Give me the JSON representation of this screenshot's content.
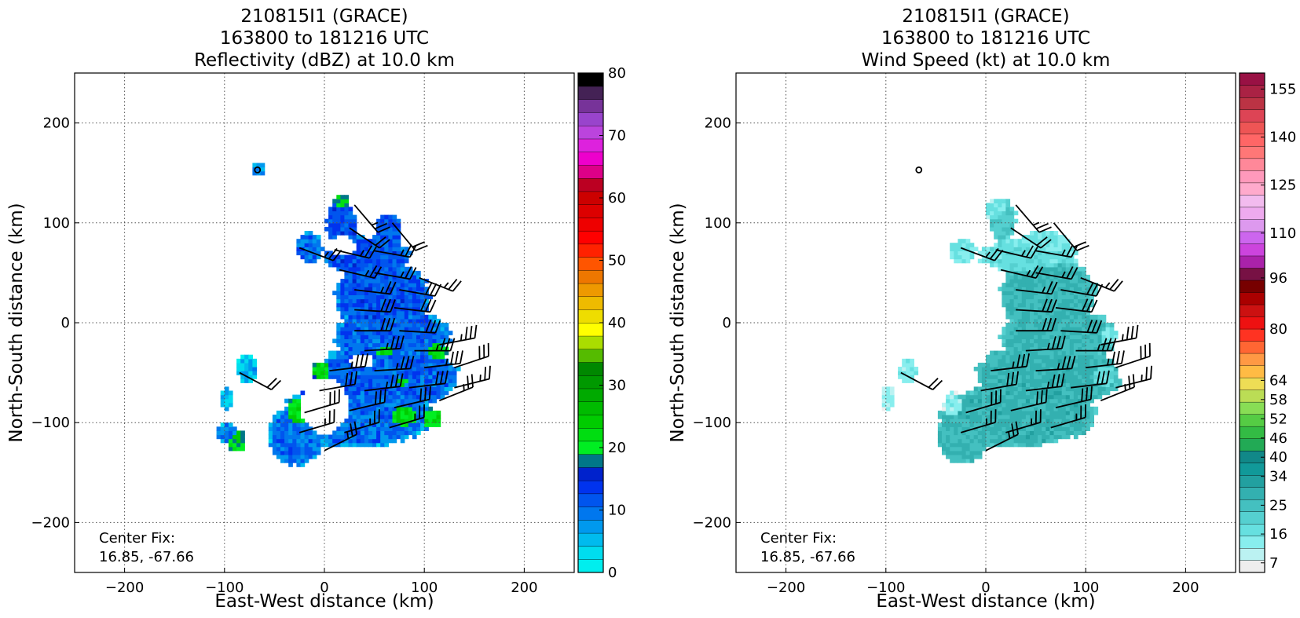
{
  "chart_data": [
    {
      "type": "heatmap",
      "title": [
        "210815I1 (GRACE)",
        "163800 to 181216 UTC",
        "Reflectivity (dBZ) at 10.0 km"
      ],
      "xlabel": "East-West distance (km)",
      "ylabel": "North-South distance (km)",
      "xlim": [
        -250,
        250
      ],
      "ylim": [
        -250,
        250
      ],
      "xticks": [
        -200,
        -100,
        0,
        100,
        200
      ],
      "yticks": [
        -200,
        -100,
        0,
        100,
        200
      ],
      "grid": true,
      "annotation": [
        "Center Fix:",
        "16.85, -67.66"
      ],
      "center_marker": [
        -67,
        153
      ],
      "colorbar": {
        "min": 0,
        "max": 80,
        "ticks": [
          0,
          10,
          20,
          30,
          40,
          50,
          60,
          70,
          80
        ],
        "colors": [
          "#00eeee",
          "#00ddee",
          "#00bbee",
          "#0099ee",
          "#0077ee",
          "#0055ee",
          "#0033ee",
          "#0022cc",
          "#007788",
          "#00ee22",
          "#00dd11",
          "#00cc00",
          "#00bb00",
          "#00aa00",
          "#009900",
          "#008800",
          "#55bb00",
          "#aadd00",
          "#ffff00",
          "#eedd00",
          "#eebb00",
          "#ee9900",
          "#ee7700",
          "#ff5500",
          "#ff2200",
          "#ff0000",
          "#ee0000",
          "#dd0000",
          "#cc0000",
          "#bb0022",
          "#dd0088",
          "#ee00cc",
          "#dd22dd",
          "#bb44dd",
          "#9944cc",
          "#773399",
          "#442255",
          "#000000"
        ]
      },
      "blobs": [
        {
          "x": 15,
          "y": 93,
          "rx": 16,
          "ry": 30,
          "v": 12
        },
        {
          "x": 62,
          "y": 90,
          "rx": 14,
          "ry": 18,
          "v": 12
        },
        {
          "x": -17,
          "y": 73,
          "rx": 14,
          "ry": 16,
          "v": 10
        },
        {
          "x": -68,
          "y": 152,
          "rx": 8,
          "ry": 8,
          "v": 8
        },
        {
          "x": 40,
          "y": 65,
          "rx": 45,
          "ry": 20,
          "v": 12
        },
        {
          "x": 55,
          "y": 25,
          "rx": 50,
          "ry": 35,
          "v": 12
        },
        {
          "x": 65,
          "y": -15,
          "rx": 60,
          "ry": 30,
          "v": 11
        },
        {
          "x": 60,
          "y": -55,
          "rx": 75,
          "ry": 35,
          "v": 11
        },
        {
          "x": 30,
          "y": -95,
          "rx": 80,
          "ry": 32,
          "v": 10
        },
        {
          "x": -30,
          "y": -115,
          "rx": 30,
          "ry": 30,
          "v": 10
        },
        {
          "x": -80,
          "y": -48,
          "rx": 10,
          "ry": 15,
          "v": 6
        },
        {
          "x": -100,
          "y": -78,
          "rx": 8,
          "ry": 12,
          "v": 5
        },
        {
          "x": -100,
          "y": -112,
          "rx": 12,
          "ry": 10,
          "v": 9
        },
        {
          "x": -18,
          "y": -80,
          "rx": 12,
          "ry": 12,
          "v": 10
        },
        {
          "x": -28,
          "y": -95,
          "rx": 14,
          "ry": 20,
          "v": 22
        },
        {
          "x": -5,
          "y": -50,
          "rx": 10,
          "ry": 10,
          "v": 22
        },
        {
          "x": 60,
          "y": -30,
          "rx": 14,
          "ry": 10,
          "v": 22
        },
        {
          "x": 75,
          "y": -60,
          "rx": 18,
          "ry": 14,
          "v": 22
        },
        {
          "x": 75,
          "y": -95,
          "rx": 20,
          "ry": 15,
          "v": 22
        },
        {
          "x": 105,
          "y": -97,
          "rx": 10,
          "ry": 10,
          "v": 22
        },
        {
          "x": -90,
          "y": -120,
          "rx": 10,
          "ry": 12,
          "v": 21
        },
        {
          "x": 62,
          "y": 88,
          "rx": 8,
          "ry": 10,
          "v": 21
        },
        {
          "x": 15,
          "y": 120,
          "rx": 8,
          "ry": 8,
          "v": 20
        },
        {
          "x": -18,
          "y": 72,
          "rx": 8,
          "ry": 9,
          "v": 21
        },
        {
          "x": 110,
          "y": -30,
          "rx": 12,
          "ry": 8,
          "v": 22
        }
      ],
      "holes": [
        {
          "x": -2,
          "y": -85,
          "rx": 24,
          "ry": 28
        },
        {
          "x": 15,
          "y": 75,
          "rx": 14,
          "ry": 10
        },
        {
          "x": 35,
          "y": -40,
          "rx": 12,
          "ry": 8
        }
      ],
      "barbs": [
        {
          "x": 30,
          "y": 118,
          "u": 12,
          "v": -14,
          "w": 25
        },
        {
          "x": 25,
          "y": 95,
          "u": 15,
          "v": -10,
          "w": 20
        },
        {
          "x": 68,
          "y": 100,
          "u": 10,
          "v": -12,
          "w": 20
        },
        {
          "x": -25,
          "y": 75,
          "u": 16,
          "v": -6,
          "w": 25
        },
        {
          "x": 10,
          "y": 73,
          "u": 17,
          "v": -4,
          "w": 25
        },
        {
          "x": 50,
          "y": 72,
          "u": 17,
          "v": -3,
          "w": 25
        },
        {
          "x": 15,
          "y": 53,
          "u": 17,
          "v": -4,
          "w": 25
        },
        {
          "x": 50,
          "y": 50,
          "u": 17,
          "v": -3,
          "w": 25
        },
        {
          "x": 95,
          "y": 45,
          "u": 15,
          "v": -6,
          "w": 25
        },
        {
          "x": 30,
          "y": 33,
          "u": 17,
          "v": -2,
          "w": 25
        },
        {
          "x": 75,
          "y": 33,
          "u": 17,
          "v": -3,
          "w": 30
        },
        {
          "x": 30,
          "y": 13,
          "u": 17,
          "v": -1,
          "w": 30
        },
        {
          "x": 70,
          "y": 15,
          "u": 17,
          "v": -2,
          "w": 30
        },
        {
          "x": 30,
          "y": -8,
          "u": 17,
          "v": 0,
          "w": 30
        },
        {
          "x": 75,
          "y": -8,
          "u": 17,
          "v": -1,
          "w": 30
        },
        {
          "x": 40,
          "y": -28,
          "u": 17,
          "v": 1,
          "w": 35
        },
        {
          "x": 90,
          "y": -28,
          "u": 17,
          "v": 0,
          "w": 35
        },
        {
          "x": 115,
          "y": -22,
          "u": 16,
          "v": 3,
          "w": 35
        },
        {
          "x": 5,
          "y": -48,
          "u": 17,
          "v": 2,
          "w": 35
        },
        {
          "x": 50,
          "y": -48,
          "u": 17,
          "v": 1,
          "w": 35
        },
        {
          "x": 100,
          "y": -45,
          "u": 17,
          "v": 2,
          "w": 35
        },
        {
          "x": 130,
          "y": -45,
          "u": 15,
          "v": 5,
          "w": 30
        },
        {
          "x": -5,
          "y": -68,
          "u": 17,
          "v": 3,
          "w": 30
        },
        {
          "x": 40,
          "y": -68,
          "u": 17,
          "v": 2,
          "w": 35
        },
        {
          "x": 85,
          "y": -65,
          "u": 17,
          "v": 2,
          "w": 30
        },
        {
          "x": 130,
          "y": -65,
          "u": 16,
          "v": 4,
          "w": 25
        },
        {
          "x": -20,
          "y": -90,
          "u": 17,
          "v": 5,
          "w": 30
        },
        {
          "x": 25,
          "y": -88,
          "u": 17,
          "v": 4,
          "w": 30
        },
        {
          "x": 70,
          "y": -85,
          "u": 17,
          "v": 4,
          "w": 30
        },
        {
          "x": 115,
          "y": -78,
          "u": 15,
          "v": 6,
          "w": 25
        },
        {
          "x": -25,
          "y": -110,
          "u": 17,
          "v": 5,
          "w": 25
        },
        {
          "x": 20,
          "y": -110,
          "u": 17,
          "v": 5,
          "w": 25
        },
        {
          "x": 65,
          "y": -105,
          "u": 17,
          "v": 5,
          "w": 25
        },
        {
          "x": 0,
          "y": -128,
          "u": 16,
          "v": 8,
          "w": 25
        },
        {
          "x": -85,
          "y": -50,
          "u": 15,
          "v": -8,
          "w": 20
        }
      ]
    },
    {
      "type": "heatmap",
      "title": [
        "210815I1 (GRACE)",
        "163800 to 181216 UTC",
        "Wind Speed (kt) at 10.0 km"
      ],
      "xlabel": "East-West distance (km)",
      "ylabel": "North-South distance (km)",
      "xlim": [
        -250,
        250
      ],
      "ylim": [
        -250,
        250
      ],
      "xticks": [
        -200,
        -100,
        0,
        100,
        200
      ],
      "yticks": [
        -200,
        -100,
        0,
        100,
        200
      ],
      "grid": true,
      "annotation": [
        "Center Fix:",
        "16.85, -67.66"
      ],
      "center_marker": [
        -67,
        153
      ],
      "colorbar": {
        "min": 4,
        "max": 160,
        "tick_values": [
          7,
          16,
          25,
          34,
          40,
          46,
          52,
          58,
          64,
          80,
          96,
          110,
          125,
          140,
          155
        ],
        "tick_labels": [
          "7",
          "16",
          "25",
          "34",
          "40",
          "46",
          "52",
          "58",
          "64",
          "80",
          "96",
          "110",
          "125",
          "140",
          "155"
        ],
        "colors": [
          "#eeeeee",
          "#bbf2f2",
          "#88eeee",
          "#66e0e0",
          "#55d0d0",
          "#44c0c0",
          "#33b0b0",
          "#22a0a0",
          "#119999",
          "#118888",
          "#22aa55",
          "#33bb44",
          "#55cc44",
          "#88dd55",
          "#bbdd55",
          "#eedd55",
          "#ffbb44",
          "#ff9944",
          "#ff6633",
          "#ff3322",
          "#ee1111",
          "#cc1111",
          "#aa0000",
          "#770000",
          "#771144",
          "#aa22aa",
          "#cc44dd",
          "#cc66ee",
          "#dd99ee",
          "#eeaaee",
          "#f2bbee",
          "#ffaacc",
          "#ff99bb",
          "#ff8899",
          "#ff7777",
          "#ff6666",
          "#ee5555",
          "#dd4455",
          "#bb3344",
          "#aa2244",
          "#991144"
        ]
      },
      "blobs": [
        {
          "x": 15,
          "y": 100,
          "rx": 14,
          "ry": 22,
          "v": 22
        },
        {
          "x": -25,
          "y": 70,
          "rx": 14,
          "ry": 12,
          "v": 16
        },
        {
          "x": 55,
          "y": 75,
          "rx": 30,
          "ry": 16,
          "v": 16
        },
        {
          "x": 40,
          "y": 65,
          "rx": 50,
          "ry": 18,
          "v": 18
        },
        {
          "x": 60,
          "y": 25,
          "rx": 50,
          "ry": 40,
          "v": 27
        },
        {
          "x": 70,
          "y": -15,
          "rx": 62,
          "ry": 30,
          "v": 27
        },
        {
          "x": 60,
          "y": -55,
          "rx": 75,
          "ry": 35,
          "v": 28
        },
        {
          "x": 30,
          "y": -95,
          "rx": 80,
          "ry": 32,
          "v": 28
        },
        {
          "x": -25,
          "y": -115,
          "rx": 28,
          "ry": 28,
          "v": 27
        },
        {
          "x": -80,
          "y": -50,
          "rx": 10,
          "ry": 12,
          "v": 14
        },
        {
          "x": -100,
          "y": -78,
          "rx": 8,
          "ry": 12,
          "v": 12
        },
        {
          "x": -35,
          "y": -85,
          "rx": 10,
          "ry": 14,
          "v": 13
        },
        {
          "x": 115,
          "y": -55,
          "rx": 14,
          "ry": 12,
          "v": 18
        },
        {
          "x": 120,
          "y": -15,
          "rx": 10,
          "ry": 10,
          "v": 16
        },
        {
          "x": 10,
          "y": 110,
          "rx": 14,
          "ry": 12,
          "v": 16
        }
      ],
      "holes": [],
      "barbs": [
        {
          "x": 30,
          "y": 118,
          "u": 12,
          "v": -14,
          "w": 25
        },
        {
          "x": 25,
          "y": 95,
          "u": 15,
          "v": -10,
          "w": 20
        },
        {
          "x": 68,
          "y": 100,
          "u": 10,
          "v": -12,
          "w": 20
        },
        {
          "x": -25,
          "y": 75,
          "u": 16,
          "v": -6,
          "w": 25
        },
        {
          "x": 10,
          "y": 73,
          "u": 17,
          "v": -4,
          "w": 25
        },
        {
          "x": 50,
          "y": 72,
          "u": 17,
          "v": -3,
          "w": 25
        },
        {
          "x": 15,
          "y": 53,
          "u": 17,
          "v": -4,
          "w": 25
        },
        {
          "x": 50,
          "y": 50,
          "u": 17,
          "v": -3,
          "w": 25
        },
        {
          "x": 95,
          "y": 45,
          "u": 15,
          "v": -6,
          "w": 25
        },
        {
          "x": 30,
          "y": 33,
          "u": 17,
          "v": -2,
          "w": 25
        },
        {
          "x": 75,
          "y": 33,
          "u": 17,
          "v": -3,
          "w": 30
        },
        {
          "x": 30,
          "y": 13,
          "u": 17,
          "v": -1,
          "w": 30
        },
        {
          "x": 70,
          "y": 15,
          "u": 17,
          "v": -2,
          "w": 30
        },
        {
          "x": 30,
          "y": -8,
          "u": 17,
          "v": 0,
          "w": 30
        },
        {
          "x": 75,
          "y": -8,
          "u": 17,
          "v": -1,
          "w": 30
        },
        {
          "x": 40,
          "y": -28,
          "u": 17,
          "v": 1,
          "w": 35
        },
        {
          "x": 90,
          "y": -28,
          "u": 17,
          "v": 0,
          "w": 35
        },
        {
          "x": 115,
          "y": -22,
          "u": 16,
          "v": 3,
          "w": 35
        },
        {
          "x": 5,
          "y": -48,
          "u": 17,
          "v": 2,
          "w": 35
        },
        {
          "x": 50,
          "y": -48,
          "u": 17,
          "v": 1,
          "w": 35
        },
        {
          "x": 100,
          "y": -45,
          "u": 17,
          "v": 2,
          "w": 35
        },
        {
          "x": 130,
          "y": -45,
          "u": 15,
          "v": 5,
          "w": 30
        },
        {
          "x": -5,
          "y": -68,
          "u": 17,
          "v": 3,
          "w": 30
        },
        {
          "x": 40,
          "y": -68,
          "u": 17,
          "v": 2,
          "w": 35
        },
        {
          "x": 85,
          "y": -65,
          "u": 17,
          "v": 2,
          "w": 30
        },
        {
          "x": 130,
          "y": -65,
          "u": 16,
          "v": 4,
          "w": 25
        },
        {
          "x": -20,
          "y": -90,
          "u": 17,
          "v": 5,
          "w": 30
        },
        {
          "x": 25,
          "y": -88,
          "u": 17,
          "v": 4,
          "w": 30
        },
        {
          "x": 70,
          "y": -85,
          "u": 17,
          "v": 4,
          "w": 30
        },
        {
          "x": 115,
          "y": -78,
          "u": 15,
          "v": 6,
          "w": 25
        },
        {
          "x": -25,
          "y": -110,
          "u": 17,
          "v": 5,
          "w": 25
        },
        {
          "x": 20,
          "y": -110,
          "u": 17,
          "v": 5,
          "w": 25
        },
        {
          "x": 65,
          "y": -105,
          "u": 17,
          "v": 5,
          "w": 25
        },
        {
          "x": 0,
          "y": -128,
          "u": 16,
          "v": 8,
          "w": 25
        },
        {
          "x": -85,
          "y": -50,
          "u": 15,
          "v": -8,
          "w": 20
        }
      ]
    }
  ]
}
